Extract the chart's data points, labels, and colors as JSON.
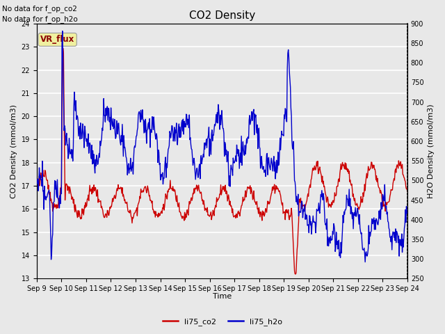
{
  "title": "CO2 Density",
  "xlabel": "Time",
  "ylabel_left": "CO2 Density (mmol/m3)",
  "ylabel_right": "H2O Density (mmol/m3)",
  "annotation_line1": "No data for f_op_co2",
  "annotation_line2": "No data for f_op_h2o",
  "vr_flux_label": "VR_flux",
  "ylim_left": [
    13.0,
    24.0
  ],
  "ylim_right": [
    250,
    900
  ],
  "yticks_left": [
    13.0,
    14.0,
    15.0,
    16.0,
    17.0,
    18.0,
    19.0,
    20.0,
    21.0,
    22.0,
    23.0,
    24.0
  ],
  "yticks_right": [
    250,
    300,
    350,
    400,
    450,
    500,
    550,
    600,
    650,
    700,
    750,
    800,
    850,
    900
  ],
  "xtick_labels": [
    "Sep 9",
    "Sep 10",
    "Sep 11",
    "Sep 12",
    "Sep 13",
    "Sep 14",
    "Sep 15",
    "Sep 16",
    "Sep 17",
    "Sep 18",
    "Sep 19",
    "Sep 20",
    "Sep 21",
    "Sep 22",
    "Sep 23",
    "Sep 24"
  ],
  "legend_labels": [
    "li75_co2",
    "li75_h2o"
  ],
  "co2_color": "#cc0000",
  "h2o_color": "#0000cc",
  "bg_color": "#e8e8e8",
  "grid_color": "#ffffff",
  "linewidth": 1.0,
  "title_fontsize": 11,
  "axis_fontsize": 8,
  "tick_fontsize": 7,
  "legend_fontsize": 8
}
